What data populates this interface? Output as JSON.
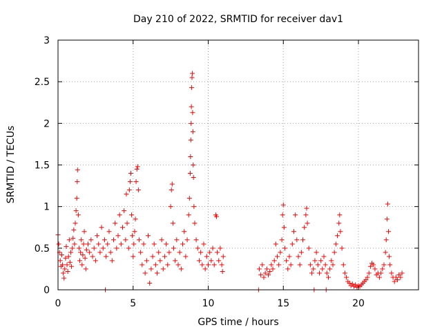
{
  "chart_data": {
    "type": "scatter",
    "title": "Day 210 of 2022, SRMTID for receiver dav1",
    "xlabel": "GPS time / hours",
    "ylabel": "SRMTID / TECUs",
    "xlim": [
      0,
      24
    ],
    "ylim": [
      0,
      3
    ],
    "xticks": [
      0,
      5,
      10,
      15,
      20
    ],
    "yticks": [
      0,
      0.5,
      1,
      1.5,
      2,
      2.5,
      3
    ],
    "xtick_labels": [
      "0",
      "5",
      "10",
      "15",
      "20"
    ],
    "ytick_labels": [
      "0",
      "0.5",
      "1",
      "1.5",
      "2",
      "2.5",
      "3"
    ],
    "grid": true,
    "marker": "+",
    "color": "#ff0000",
    "series": [
      {
        "name": "SRMTID",
        "points": [
          [
            0.0,
            0.66
          ],
          [
            0.05,
            0.55
          ],
          [
            0.1,
            0.45
          ],
          [
            0.15,
            0.35
          ],
          [
            0.2,
            0.28
          ],
          [
            0.25,
            0.42
          ],
          [
            0.3,
            0.3
          ],
          [
            0.35,
            0.2
          ],
          [
            0.4,
            0.14
          ],
          [
            0.45,
            0.25
          ],
          [
            0.5,
            0.38
          ],
          [
            0.55,
            0.52
          ],
          [
            0.6,
            0.3
          ],
          [
            0.65,
            0.22
          ],
          [
            0.7,
            0.4
          ],
          [
            0.75,
            0.6
          ],
          [
            0.8,
            0.33
          ],
          [
            0.85,
            0.45
          ],
          [
            0.9,
            0.28
          ],
          [
            0.95,
            0.5
          ],
          [
            1.0,
            0.62
          ],
          [
            1.05,
            0.72
          ],
          [
            1.1,
            0.55
          ],
          [
            1.15,
            0.8
          ],
          [
            1.2,
            0.95
          ],
          [
            1.25,
            1.1
          ],
          [
            1.28,
            1.3
          ],
          [
            1.3,
            1.44
          ],
          [
            1.35,
            0.9
          ],
          [
            1.4,
            0.5
          ],
          [
            1.45,
            0.35
          ],
          [
            1.5,
            0.45
          ],
          [
            1.55,
            0.6
          ],
          [
            1.6,
            0.3
          ],
          [
            1.65,
            0.42
          ],
          [
            1.7,
            0.55
          ],
          [
            1.75,
            0.7
          ],
          [
            1.8,
            0.38
          ],
          [
            1.85,
            0.25
          ],
          [
            1.9,
            0.48
          ],
          [
            2.0,
            0.55
          ],
          [
            2.1,
            0.45
          ],
          [
            2.2,
            0.6
          ],
          [
            2.3,
            0.4
          ],
          [
            2.4,
            0.5
          ],
          [
            2.5,
            0.35
          ],
          [
            2.6,
            0.65
          ],
          [
            2.7,
            0.55
          ],
          [
            2.8,
            0.45
          ],
          [
            2.9,
            0.75
          ],
          [
            3.0,
            0.5
          ],
          [
            3.1,
            0.6
          ],
          [
            3.2,
            0.4
          ],
          [
            3.3,
            0.55
          ],
          [
            3.4,
            0.7
          ],
          [
            3.5,
            0.45
          ],
          [
            3.6,
            0.35
          ],
          [
            3.7,
            0.6
          ],
          [
            3.8,
            0.8
          ],
          [
            3.9,
            0.5
          ],
          [
            3.15,
            0.0
          ],
          [
            4.0,
            0.65
          ],
          [
            4.1,
            0.9
          ],
          [
            4.2,
            0.55
          ],
          [
            4.3,
            0.75
          ],
          [
            4.4,
            0.95
          ],
          [
            4.5,
            0.6
          ],
          [
            4.55,
            1.15
          ],
          [
            4.6,
            0.8
          ],
          [
            4.7,
            0.5
          ],
          [
            4.75,
            1.2
          ],
          [
            4.8,
            1.3
          ],
          [
            4.85,
            1.4
          ],
          [
            4.9,
            0.9
          ],
          [
            4.95,
            0.65
          ],
          [
            5.0,
            0.4
          ],
          [
            5.05,
            0.55
          ],
          [
            5.1,
            0.7
          ],
          [
            5.15,
            0.85
          ],
          [
            5.2,
            1.3
          ],
          [
            5.25,
            1.45
          ],
          [
            5.3,
            1.48
          ],
          [
            5.35,
            1.2
          ],
          [
            5.4,
            0.6
          ],
          [
            5.5,
            0.45
          ],
          [
            5.6,
            0.3
          ],
          [
            5.7,
            0.55
          ],
          [
            5.8,
            0.2
          ],
          [
            5.9,
            0.35
          ],
          [
            6.0,
            0.65
          ],
          [
            6.1,
            0.08
          ],
          [
            6.2,
            0.25
          ],
          [
            6.3,
            0.4
          ],
          [
            6.4,
            0.55
          ],
          [
            6.5,
            0.3
          ],
          [
            6.6,
            0.2
          ],
          [
            6.7,
            0.45
          ],
          [
            6.8,
            0.35
          ],
          [
            6.9,
            0.6
          ],
          [
            7.0,
            0.25
          ],
          [
            7.1,
            0.4
          ],
          [
            7.2,
            0.55
          ],
          [
            7.3,
            0.3
          ],
          [
            7.4,
            0.45
          ],
          [
            7.5,
            1.0
          ],
          [
            7.55,
            1.2
          ],
          [
            7.6,
            1.27
          ],
          [
            7.65,
            0.8
          ],
          [
            7.7,
            0.5
          ],
          [
            7.8,
            0.35
          ],
          [
            7.9,
            0.6
          ],
          [
            8.0,
            0.3
          ],
          [
            8.1,
            0.45
          ],
          [
            8.2,
            0.25
          ],
          [
            8.3,
            0.55
          ],
          [
            8.4,
            0.7
          ],
          [
            8.5,
            0.4
          ],
          [
            8.6,
            0.6
          ],
          [
            8.7,
            0.9
          ],
          [
            8.75,
            1.1
          ],
          [
            8.8,
            1.4
          ],
          [
            8.82,
            1.6
          ],
          [
            8.84,
            1.8
          ],
          [
            8.86,
            2.0
          ],
          [
            8.88,
            2.2
          ],
          [
            8.9,
            2.43
          ],
          [
            8.92,
            2.55
          ],
          [
            8.94,
            2.6
          ],
          [
            8.96,
            2.13
          ],
          [
            8.98,
            1.9
          ],
          [
            9.0,
            1.5
          ],
          [
            9.02,
            1.35
          ],
          [
            9.05,
            1.0
          ],
          [
            9.1,
            0.8
          ],
          [
            9.2,
            0.6
          ],
          [
            9.3,
            0.5
          ],
          [
            9.4,
            0.35
          ],
          [
            9.5,
            0.45
          ],
          [
            9.6,
            0.3
          ],
          [
            9.7,
            0.55
          ],
          [
            9.8,
            0.25
          ],
          [
            9.9,
            0.4
          ],
          [
            10.0,
            0.3
          ],
          [
            10.1,
            0.45
          ],
          [
            10.2,
            0.35
          ],
          [
            10.3,
            0.5
          ],
          [
            10.4,
            0.3
          ],
          [
            10.5,
            0.9
          ],
          [
            10.55,
            0.88
          ],
          [
            10.6,
            0.45
          ],
          [
            10.7,
            0.35
          ],
          [
            10.8,
            0.5
          ],
          [
            10.9,
            0.3
          ],
          [
            11.0,
            0.4
          ],
          [
            10.95,
            0.22
          ],
          [
            13.35,
            0.0
          ],
          [
            13.4,
            0.25
          ],
          [
            13.5,
            0.18
          ],
          [
            13.6,
            0.3
          ],
          [
            13.7,
            0.15
          ],
          [
            13.8,
            0.2
          ],
          [
            13.9,
            0.25
          ],
          [
            14.0,
            0.18
          ],
          [
            14.1,
            0.22
          ],
          [
            14.2,
            0.3
          ],
          [
            14.3,
            0.25
          ],
          [
            14.4,
            0.35
          ],
          [
            14.5,
            0.55
          ],
          [
            14.6,
            0.4
          ],
          [
            14.7,
            0.3
          ],
          [
            14.8,
            0.45
          ],
          [
            14.9,
            0.6
          ],
          [
            14.95,
            0.9
          ],
          [
            15.0,
            1.02
          ],
          [
            15.05,
            0.75
          ],
          [
            15.1,
            0.5
          ],
          [
            15.2,
            0.35
          ],
          [
            15.3,
            0.25
          ],
          [
            15.4,
            0.4
          ],
          [
            15.5,
            0.3
          ],
          [
            15.6,
            0.55
          ],
          [
            15.7,
            0.7
          ],
          [
            15.8,
            0.9
          ],
          [
            15.9,
            0.6
          ],
          [
            16.0,
            0.4
          ],
          [
            16.1,
            0.3
          ],
          [
            16.2,
            0.45
          ],
          [
            16.3,
            0.6
          ],
          [
            16.4,
            0.75
          ],
          [
            16.5,
            0.9
          ],
          [
            16.55,
            0.98
          ],
          [
            16.6,
            0.8
          ],
          [
            16.7,
            0.5
          ],
          [
            16.8,
            0.3
          ],
          [
            16.9,
            0.2
          ],
          [
            17.0,
            0.25
          ],
          [
            17.05,
            0.0
          ],
          [
            17.1,
            0.35
          ],
          [
            17.2,
            0.45
          ],
          [
            17.3,
            0.3
          ],
          [
            17.4,
            0.2
          ],
          [
            17.5,
            0.35
          ],
          [
            17.6,
            0.25
          ],
          [
            17.7,
            0.4
          ],
          [
            17.8,
            0.3
          ],
          [
            17.85,
            0.0
          ],
          [
            17.9,
            0.2
          ],
          [
            18.0,
            0.15
          ],
          [
            18.1,
            0.25
          ],
          [
            18.2,
            0.35
          ],
          [
            18.3,
            0.3
          ],
          [
            18.4,
            0.45
          ],
          [
            18.5,
            0.55
          ],
          [
            18.6,
            0.65
          ],
          [
            18.7,
            0.8
          ],
          [
            18.75,
            0.9
          ],
          [
            18.8,
            0.7
          ],
          [
            18.9,
            0.5
          ],
          [
            19.0,
            0.3
          ],
          [
            19.1,
            0.2
          ],
          [
            19.2,
            0.15
          ],
          [
            19.3,
            0.1
          ],
          [
            19.4,
            0.08
          ],
          [
            19.5,
            0.05
          ],
          [
            19.6,
            0.07
          ],
          [
            19.7,
            0.04
          ],
          [
            19.8,
            0.06
          ],
          [
            19.9,
            0.03
          ],
          [
            20.0,
            0.05
          ],
          [
            20.1,
            0.04
          ],
          [
            20.2,
            0.06
          ],
          [
            20.3,
            0.08
          ],
          [
            20.4,
            0.1
          ],
          [
            20.5,
            0.12
          ],
          [
            20.6,
            0.15
          ],
          [
            20.7,
            0.2
          ],
          [
            20.8,
            0.28
          ],
          [
            20.9,
            0.32
          ],
          [
            21.0,
            0.3
          ],
          [
            21.1,
            0.25
          ],
          [
            21.2,
            0.18
          ],
          [
            21.3,
            0.2
          ],
          [
            21.4,
            0.15
          ],
          [
            21.5,
            0.2
          ],
          [
            21.6,
            0.25
          ],
          [
            21.7,
            0.3
          ],
          [
            21.8,
            0.45
          ],
          [
            21.85,
            0.6
          ],
          [
            21.9,
            0.85
          ],
          [
            21.95,
            1.03
          ],
          [
            22.0,
            0.7
          ],
          [
            22.05,
            0.4
          ],
          [
            22.1,
            0.3
          ],
          [
            22.2,
            0.2
          ],
          [
            22.3,
            0.15
          ],
          [
            22.4,
            0.1
          ],
          [
            22.5,
            0.15
          ],
          [
            22.6,
            0.12
          ],
          [
            22.7,
            0.18
          ],
          [
            22.8,
            0.15
          ],
          [
            22.9,
            0.2
          ]
        ]
      }
    ]
  }
}
